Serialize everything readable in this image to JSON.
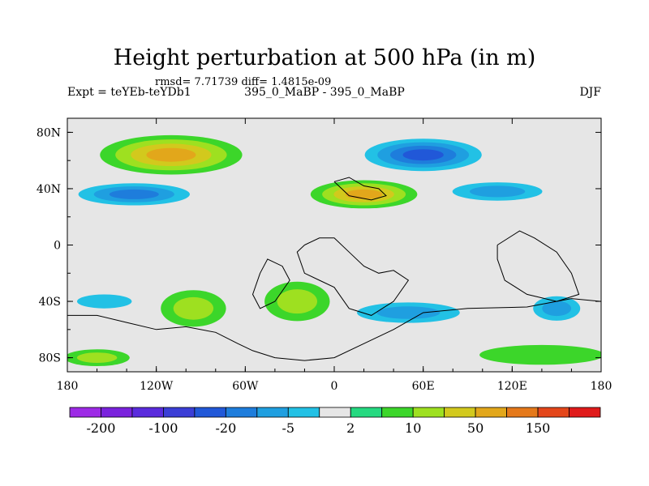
{
  "chart_data": {
    "type": "heatmap",
    "title": "Height perturbation at 500 hPa (in m)",
    "stats_line": "rmsd= 7.71739 diff= 1.4815e-09",
    "left_label": "Expt = teYEb-teYDb1",
    "center_label": "395_0_MaBP - 395_0_MaBP",
    "right_label": "DJF",
    "x_range": [
      -180,
      180
    ],
    "y_range": [
      -90,
      90
    ],
    "x_ticks": [
      {
        "value": -180,
        "label": "180"
      },
      {
        "value": -120,
        "label": "120W"
      },
      {
        "value": -60,
        "label": "60W"
      },
      {
        "value": 0,
        "label": "0"
      },
      {
        "value": 60,
        "label": "60E"
      },
      {
        "value": 120,
        "label": "120E"
      },
      {
        "value": 180,
        "label": "180"
      }
    ],
    "y_ticks": [
      {
        "value": 80,
        "label": "80N"
      },
      {
        "value": 40,
        "label": "40N"
      },
      {
        "value": 0,
        "label": "0"
      },
      {
        "value": -40,
        "label": "40S"
      },
      {
        "value": -80,
        "label": "80S"
      }
    ],
    "colorbar": {
      "colors": [
        "#9d2ae6",
        "#7a22dd",
        "#5a2bdd",
        "#3b3ed6",
        "#2158d8",
        "#1e7ddc",
        "#1f9fe0",
        "#22c1e5",
        "#e6e6e6",
        "#25d980",
        "#3cd62a",
        "#9ee020",
        "#d2c91d",
        "#e2a71b",
        "#e5791a",
        "#e4461a",
        "#e01b1b"
      ],
      "tick_labels": [
        {
          "boundary": 1,
          "label": "-200"
        },
        {
          "boundary": 3,
          "label": "-100"
        },
        {
          "boundary": 5,
          "label": "-20"
        },
        {
          "boundary": 7,
          "label": "-5"
        },
        {
          "boundary": 9,
          "label": "2"
        },
        {
          "boundary": 11,
          "label": "10"
        },
        {
          "boundary": 13,
          "label": "50"
        },
        {
          "boundary": 15,
          "label": "150"
        }
      ]
    },
    "field_features": [
      {
        "name": "north-pacific-high",
        "lon": -110,
        "lat": 64,
        "rx": 48,
        "ry": 14,
        "level": 13,
        "base": 10
      },
      {
        "name": "eurasian-low",
        "lon": 60,
        "lat": 64,
        "rx": 48,
        "ry": 14,
        "level": 4,
        "base": 8
      },
      {
        "name": "west-pacific-band",
        "lon": -135,
        "lat": 36,
        "rx": 48,
        "ry": 10,
        "level": 5,
        "base": 8
      },
      {
        "name": "atlantic-ridge",
        "lon": 20,
        "lat": 36,
        "rx": 36,
        "ry": 10,
        "level": 13,
        "base": 10
      },
      {
        "name": "east-band",
        "lon": 110,
        "lat": 38,
        "rx": 42,
        "ry": 9,
        "level": 6,
        "base": 8
      },
      {
        "name": "southern-mid-lat-high",
        "lon": -95,
        "lat": -45,
        "rx": 22,
        "ry": 13,
        "level": 11,
        "base": 10
      },
      {
        "name": "south-atlantic",
        "lon": -25,
        "lat": -40,
        "rx": 22,
        "ry": 14,
        "level": 11,
        "base": 10
      },
      {
        "name": "southern-low",
        "lon": 50,
        "lat": -48,
        "rx": 48,
        "ry": 10,
        "level": 6,
        "base": 8
      },
      {
        "name": "southern-low-west",
        "lon": -155,
        "lat": -40,
        "rx": 30,
        "ry": 8,
        "level": 7,
        "base": 8
      },
      {
        "name": "far-east-south",
        "lon": 150,
        "lat": -45,
        "rx": 22,
        "ry": 12,
        "level": 6,
        "base": 8
      },
      {
        "name": "polar-south",
        "lon": -160,
        "lat": -80,
        "rx": 22,
        "ry": 6,
        "level": 11,
        "base": 10
      },
      {
        "name": "polar-south-east",
        "lon": 140,
        "lat": -78,
        "rx": 42,
        "ry": 7,
        "level": 10,
        "base": 10
      }
    ],
    "coastlines": [
      [
        [
          -180,
          -50
        ],
        [
          -160,
          -50
        ],
        [
          -140,
          -55
        ],
        [
          -120,
          -60
        ],
        [
          -100,
          -58
        ],
        [
          -80,
          -62
        ],
        [
          -65,
          -70
        ],
        [
          -55,
          -75
        ],
        [
          -40,
          -80
        ],
        [
          -20,
          -82
        ],
        [
          0,
          -80
        ],
        [
          20,
          -70
        ],
        [
          40,
          -60
        ],
        [
          60,
          -48
        ],
        [
          90,
          -45
        ],
        [
          130,
          -44
        ],
        [
          160,
          -38
        ],
        [
          180,
          -40
        ]
      ],
      [
        [
          -20,
          0
        ],
        [
          -10,
          5
        ],
        [
          0,
          5
        ],
        [
          10,
          -5
        ],
        [
          20,
          -15
        ],
        [
          30,
          -20
        ],
        [
          40,
          -18
        ],
        [
          50,
          -25
        ],
        [
          40,
          -40
        ],
        [
          25,
          -50
        ],
        [
          10,
          -45
        ],
        [
          0,
          -30
        ],
        [
          -10,
          -25
        ],
        [
          -20,
          -20
        ],
        [
          -25,
          -5
        ],
        [
          -20,
          0
        ]
      ],
      [
        [
          0,
          45
        ],
        [
          10,
          48
        ],
        [
          20,
          42
        ],
        [
          30,
          40
        ],
        [
          35,
          35
        ],
        [
          25,
          32
        ],
        [
          10,
          35
        ],
        [
          5,
          40
        ],
        [
          0,
          45
        ]
      ],
      [
        [
          110,
          0
        ],
        [
          125,
          10
        ],
        [
          135,
          5
        ],
        [
          150,
          -5
        ],
        [
          160,
          -20
        ],
        [
          165,
          -35
        ],
        [
          150,
          -40
        ],
        [
          130,
          -35
        ],
        [
          115,
          -25
        ],
        [
          110,
          -10
        ],
        [
          110,
          0
        ]
      ],
      [
        [
          -50,
          -20
        ],
        [
          -45,
          -10
        ],
        [
          -35,
          -15
        ],
        [
          -30,
          -25
        ],
        [
          -40,
          -40
        ],
        [
          -50,
          -45
        ],
        [
          -55,
          -35
        ],
        [
          -50,
          -20
        ]
      ]
    ]
  }
}
